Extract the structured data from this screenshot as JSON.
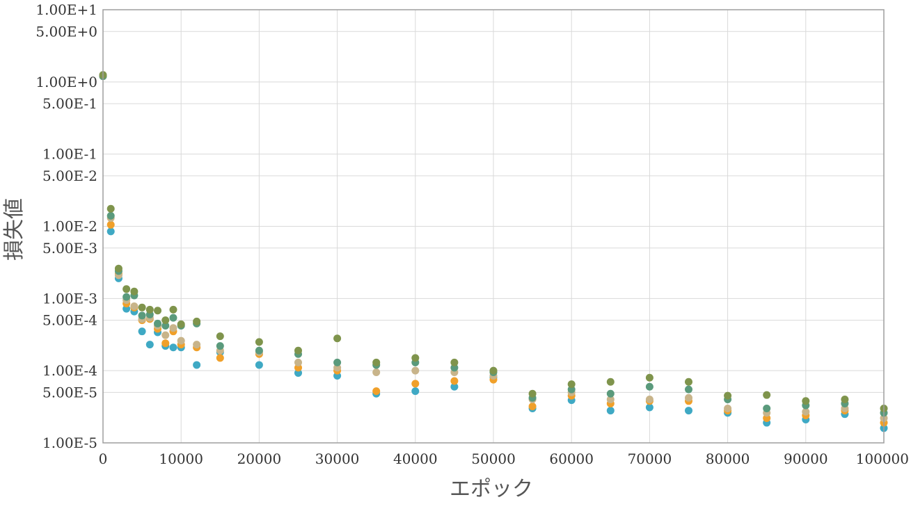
{
  "chart_data": {
    "type": "scatter",
    "title": "",
    "xlabel": "エポック",
    "ylabel": "損失値",
    "xlim": [
      0,
      100000
    ],
    "ylim": [
      1e-05,
      10
    ],
    "yscale": "log",
    "grid": true,
    "legend": "none",
    "x_ticks": [
      {
        "value": 0,
        "label": "0"
      },
      {
        "value": 10000,
        "label": "10000"
      },
      {
        "value": 20000,
        "label": "20000"
      },
      {
        "value": 30000,
        "label": "30000"
      },
      {
        "value": 40000,
        "label": "40000"
      },
      {
        "value": 50000,
        "label": "50000"
      },
      {
        "value": 60000,
        "label": "60000"
      },
      {
        "value": 70000,
        "label": "70000"
      },
      {
        "value": 80000,
        "label": "80000"
      },
      {
        "value": 90000,
        "label": "90000"
      },
      {
        "value": 100000,
        "label": "100000"
      }
    ],
    "y_ticks": [
      {
        "value": 10,
        "label": "1.00E+1"
      },
      {
        "value": 5,
        "label": "5.00E+0"
      },
      {
        "value": 1,
        "label": "1.00E+0"
      },
      {
        "value": 0.5,
        "label": "5.00E-1"
      },
      {
        "value": 0.1,
        "label": "1.00E-1"
      },
      {
        "value": 0.05,
        "label": "5.00E-2"
      },
      {
        "value": 0.01,
        "label": "1.00E-2"
      },
      {
        "value": 0.005,
        "label": "5.00E-3"
      },
      {
        "value": 0.001,
        "label": "1.00E-3"
      },
      {
        "value": 0.0005,
        "label": "5.00E-4"
      },
      {
        "value": 0.0001,
        "label": "1.00E-4"
      },
      {
        "value": 5e-05,
        "label": "5.00E-5"
      },
      {
        "value": 1e-05,
        "label": "1.00E-5"
      }
    ],
    "x": [
      0,
      1000,
      2000,
      3000,
      4000,
      5000,
      6000,
      7000,
      8000,
      9000,
      10000,
      12000,
      15000,
      20000,
      25000,
      30000,
      35000,
      40000,
      45000,
      50000,
      55000,
      60000,
      65000,
      70000,
      75000,
      80000,
      85000,
      90000,
      95000,
      100000
    ],
    "series": [
      {
        "color": "#3fa9c4",
        "values": [
          1.2,
          0.0085,
          0.0019,
          0.00072,
          0.00066,
          0.00035,
          0.00023,
          0.00034,
          0.00022,
          0.00021,
          0.00021,
          0.00012,
          0.00018,
          0.00012,
          9.3e-05,
          8.5e-05,
          4.8e-05,
          5.2e-05,
          6e-05,
          8.1e-05,
          3e-05,
          3.9e-05,
          2.8e-05,
          3.1e-05,
          2.8e-05,
          2.6e-05,
          1.9e-05,
          2.1e-05,
          2.5e-05,
          1.6e-05
        ]
      },
      {
        "color": "#f0a02a",
        "values": [
          1.2,
          0.0105,
          0.0022,
          0.00085,
          0.00075,
          0.0005,
          0.00052,
          0.00038,
          0.00024,
          0.00035,
          0.00023,
          0.00021,
          0.00015,
          0.00017,
          0.00011,
          0.0001,
          5.2e-05,
          6.6e-05,
          7.2e-05,
          7.5e-05,
          3.2e-05,
          4.5e-05,
          3.5e-05,
          3.8e-05,
          3.8e-05,
          2.8e-05,
          2.2e-05,
          2.4e-05,
          2.8e-05,
          1.9e-05
        ]
      },
      {
        "color": "#c8b48a",
        "values": [
          1.2,
          0.013,
          0.0021,
          0.00095,
          0.00078,
          0.00052,
          0.00054,
          0.00042,
          0.00031,
          0.00039,
          0.00026,
          0.00023,
          0.00019,
          0.00018,
          0.00013,
          0.00011,
          9.5e-05,
          0.0001,
          9.5e-05,
          8.5e-05,
          4e-05,
          5e-05,
          4e-05,
          4e-05,
          4.2e-05,
          3e-05,
          2.6e-05,
          2.7e-05,
          3e-05,
          2.2e-05
        ]
      },
      {
        "color": "#5a9a7c",
        "values": [
          1.2,
          0.014,
          0.0024,
          0.00105,
          0.0011,
          0.00058,
          0.0006,
          0.00045,
          0.00042,
          0.00054,
          0.00042,
          0.00045,
          0.00022,
          0.00019,
          0.00017,
          0.00013,
          0.00012,
          0.00013,
          0.00011,
          9.5e-05,
          4.2e-05,
          5.5e-05,
          4.8e-05,
          6e-05,
          5.5e-05,
          4e-05,
          3e-05,
          3.3e-05,
          3.5e-05,
          2.6e-05
        ]
      },
      {
        "color": "#7f944c",
        "values": [
          1.25,
          0.0175,
          0.0026,
          0.00135,
          0.00125,
          0.00075,
          0.0007,
          0.00068,
          0.0005,
          0.0007,
          0.00044,
          0.00048,
          0.0003,
          0.00025,
          0.00019,
          0.00028,
          0.00013,
          0.00015,
          0.00013,
          0.0001,
          4.8e-05,
          6.5e-05,
          7e-05,
          8e-05,
          7e-05,
          4.5e-05,
          4.6e-05,
          3.8e-05,
          4e-05,
          3e-05
        ]
      }
    ]
  }
}
